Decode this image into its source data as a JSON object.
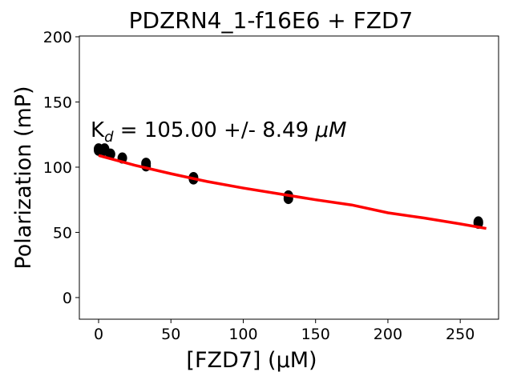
{
  "chart_data": {
    "type": "scatter",
    "title": "PDZRN4_1-f16E6 + FZD7",
    "xlabel": "[FZD7] (μM)",
    "ylabel": "Polarization (mP)",
    "xlim": [
      -13.3,
      276.5
    ],
    "ylim": [
      -16.6,
      200.6
    ],
    "xticks": [
      0,
      50,
      100,
      150,
      200,
      250
    ],
    "yticks": [
      0,
      50,
      100,
      150,
      200
    ],
    "grid": false,
    "annotation": {
      "prefix": "K",
      "sub": "d",
      "text": " = 105.00 +/- 8.49 ",
      "unit": "μM"
    },
    "points": {
      "name": "data",
      "color": "#000000",
      "x": [
        0,
        0,
        4.1,
        4.1,
        8.2,
        16.4,
        32.8,
        32.8,
        65.6,
        65.6,
        131.2,
        131.2,
        262.5,
        262.5
      ],
      "y": [
        114,
        113,
        114,
        113,
        110,
        107,
        103,
        101,
        92,
        91,
        78,
        76,
        58,
        57
      ]
    },
    "fit": {
      "name": "fit",
      "color": "#ff0000",
      "x": [
        0,
        25,
        50,
        75,
        100,
        125,
        150,
        175,
        200,
        225,
        250,
        268
      ],
      "y": [
        109,
        101.5,
        95,
        89,
        84,
        79.5,
        75,
        71,
        65,
        61,
        56.5,
        53
      ]
    }
  }
}
